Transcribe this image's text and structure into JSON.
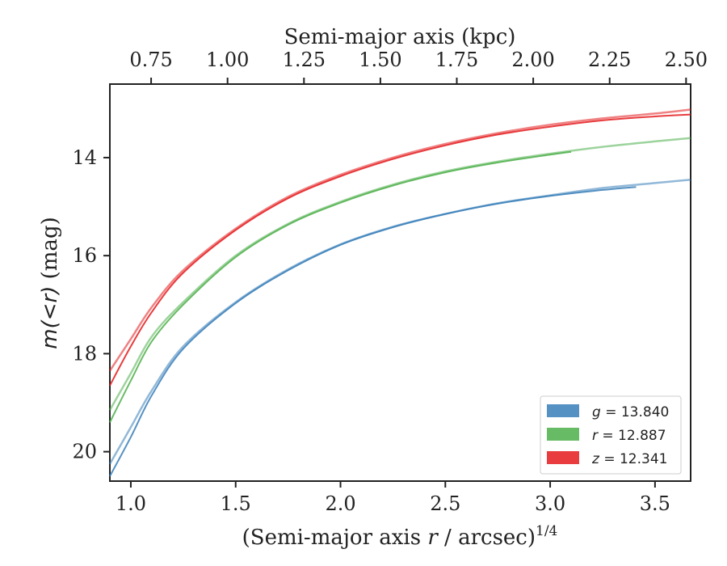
{
  "chart_data": {
    "type": "line",
    "xlabel": "(Semi-major axis r / arcsec)^1/4",
    "xlabel_parts": {
      "main": "(Semi-major axis ",
      "var": "r",
      "rest": " / arcsec)",
      "sup": "1/4"
    },
    "ylabel": "m(<r) (mag)",
    "ylabel_parts": {
      "math": "m(<r)",
      "unit": " (mag)"
    },
    "top_xlabel": "Semi-major axis (kpc)",
    "xlim": [
      0.9,
      3.67
    ],
    "ylim": [
      20.6,
      12.5
    ],
    "y_inverted": true,
    "top_xlim": [
      0.615,
      2.515
    ],
    "x_ticks": [
      "1.0",
      "1.5",
      "2.0",
      "2.5",
      "3.0",
      "3.5"
    ],
    "y_ticks": [
      "14",
      "16",
      "18",
      "20"
    ],
    "top_x_ticks": [
      "0.75",
      "1.00",
      "1.25",
      "1.50",
      "1.75",
      "2.00",
      "2.25",
      "2.50"
    ],
    "legend": {
      "position": "lower-right",
      "entries": [
        "g = 13.840",
        "r = 12.887",
        "z = 12.341"
      ]
    },
    "series": [
      {
        "name": "g = 13.840",
        "color": "#377eb8",
        "model": [
          [
            0.9,
            20.25
          ],
          [
            1.0,
            19.5
          ],
          [
            1.1,
            18.75
          ],
          [
            1.25,
            17.85
          ],
          [
            1.5,
            16.95
          ],
          [
            1.75,
            16.28
          ],
          [
            2.0,
            15.77
          ],
          [
            2.25,
            15.41
          ],
          [
            2.5,
            15.15
          ],
          [
            2.75,
            14.93
          ],
          [
            3.0,
            14.77
          ],
          [
            3.25,
            14.62
          ],
          [
            3.5,
            14.52
          ],
          [
            3.67,
            14.45
          ]
        ],
        "data": [
          [
            0.9,
            20.5
          ],
          [
            1.0,
            19.7
          ],
          [
            1.1,
            18.85
          ],
          [
            1.25,
            17.9
          ],
          [
            1.5,
            16.97
          ],
          [
            1.75,
            16.3
          ],
          [
            2.0,
            15.78
          ],
          [
            2.25,
            15.42
          ],
          [
            2.5,
            15.15
          ],
          [
            2.75,
            14.94
          ],
          [
            3.0,
            14.78
          ],
          [
            3.25,
            14.66
          ],
          [
            3.41,
            14.6
          ]
        ]
      },
      {
        "name": "r = 12.887",
        "color": "#4daf4a",
        "model": [
          [
            0.9,
            19.15
          ],
          [
            1.0,
            18.4
          ],
          [
            1.1,
            17.65
          ],
          [
            1.25,
            16.95
          ],
          [
            1.5,
            16.0
          ],
          [
            1.75,
            15.35
          ],
          [
            2.0,
            14.9
          ],
          [
            2.25,
            14.55
          ],
          [
            2.5,
            14.28
          ],
          [
            2.75,
            14.08
          ],
          [
            3.0,
            13.92
          ],
          [
            3.25,
            13.78
          ],
          [
            3.5,
            13.67
          ],
          [
            3.67,
            13.6
          ]
        ],
        "data": [
          [
            0.9,
            19.4
          ],
          [
            1.0,
            18.55
          ],
          [
            1.1,
            17.75
          ],
          [
            1.25,
            17.0
          ],
          [
            1.5,
            16.03
          ],
          [
            1.75,
            15.37
          ],
          [
            2.0,
            14.92
          ],
          [
            2.25,
            14.57
          ],
          [
            2.5,
            14.3
          ],
          [
            2.75,
            14.1
          ],
          [
            3.0,
            13.94
          ],
          [
            3.1,
            13.88
          ]
        ]
      },
      {
        "name": "z = 12.341",
        "color": "#e41a1c",
        "model": [
          [
            0.9,
            18.35
          ],
          [
            1.0,
            17.7
          ],
          [
            1.1,
            17.05
          ],
          [
            1.25,
            16.3
          ],
          [
            1.5,
            15.45
          ],
          [
            1.75,
            14.8
          ],
          [
            2.0,
            14.35
          ],
          [
            2.25,
            14.0
          ],
          [
            2.5,
            13.72
          ],
          [
            2.75,
            13.5
          ],
          [
            3.0,
            13.33
          ],
          [
            3.25,
            13.2
          ],
          [
            3.5,
            13.1
          ],
          [
            3.67,
            13.02
          ]
        ],
        "data": [
          [
            0.9,
            18.65
          ],
          [
            1.0,
            17.85
          ],
          [
            1.1,
            17.15
          ],
          [
            1.25,
            16.35
          ],
          [
            1.5,
            15.48
          ],
          [
            1.75,
            14.83
          ],
          [
            2.0,
            14.38
          ],
          [
            2.25,
            14.03
          ],
          [
            2.5,
            13.75
          ],
          [
            2.75,
            13.53
          ],
          [
            3.0,
            13.37
          ],
          [
            3.25,
            13.24
          ],
          [
            3.5,
            13.16
          ],
          [
            3.67,
            13.12
          ]
        ]
      }
    ]
  }
}
